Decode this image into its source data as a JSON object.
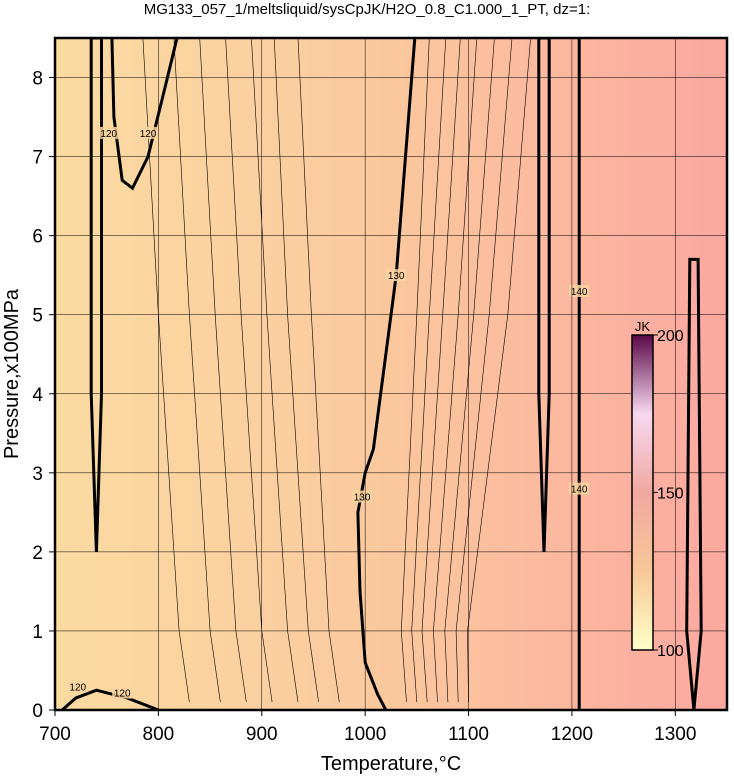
{
  "chart_data": {
    "type": "contour",
    "title": "MG133_057_1/meltsliquid/sysCpJK/H2O_0.8_C1.000_1_PT, dz=1:",
    "xlabel": "Temperature,°C",
    "ylabel": "Pressure,x100MPa",
    "xlim": [
      700,
      1350
    ],
    "ylim": [
      0,
      8.5
    ],
    "xticks": [
      700,
      800,
      900,
      1000,
      1100,
      1200,
      1300
    ],
    "yticks": [
      0,
      1,
      2,
      3,
      4,
      5,
      6,
      7,
      8
    ],
    "grid": true,
    "field_colors": [
      "#fbdba2",
      "#fbc89e",
      "#fca8a0"
    ],
    "colorbar": {
      "label": "JK",
      "lim": [
        100,
        200
      ],
      "ticks": [
        100,
        150,
        200
      ],
      "colors": [
        "#ffffc8",
        "#f8c898",
        "#f0a8a0",
        "#f8d8f0",
        "#5a0848"
      ]
    },
    "contours": [
      {
        "level": 120,
        "thick": true,
        "x": [
          707,
          720,
          740,
          770,
          800
        ],
        "y": [
          0,
          0.15,
          0.25,
          0.15,
          0
        ]
      },
      {
        "level": 120,
        "thick": true,
        "x": [
          755,
          757,
          765,
          775,
          790,
          805,
          818
        ],
        "y": [
          8.5,
          7.5,
          6.7,
          6.6,
          7.0,
          7.8,
          8.5
        ]
      },
      {
        "level": 130,
        "thick": true,
        "x": [
          1020,
          1012,
          1000,
          995,
          993,
          1000,
          1008,
          1030,
          1048
        ],
        "y": [
          0,
          0.2,
          0.6,
          1.5,
          2.5,
          3.0,
          3.3,
          5.5,
          8.5
        ]
      },
      {
        "level": 140,
        "thick": true,
        "x": [
          1207,
          1207
        ],
        "y": [
          0,
          8.5
        ]
      },
      {
        "level": 125,
        "thick": true,
        "x": [
          740,
          745,
          745,
          740,
          735,
          735,
          740
        ],
        "y": [
          2,
          4,
          8.5,
          8.5,
          8.5,
          4,
          2
        ]
      },
      {
        "level": 145,
        "thick": true,
        "x": [
          1173,
          1178,
          1178,
          1173,
          1168,
          1168,
          1173
        ],
        "y": [
          2,
          4,
          8.5,
          8.5,
          8.5,
          4,
          2
        ]
      },
      {
        "level": 150,
        "thick": true,
        "x": [
          1318,
          1325,
          1322,
          1318,
          1314,
          1311,
          1318
        ],
        "y": [
          0,
          1,
          5.7,
          5.7,
          5.7,
          1,
          0
        ]
      },
      {
        "level": 121,
        "thick": false,
        "x": [
          830,
          820,
          800,
          785
        ],
        "y": [
          0.1,
          1,
          5,
          8.5
        ]
      },
      {
        "level": 122,
        "thick": false,
        "x": [
          860,
          850,
          830,
          815
        ],
        "y": [
          0.1,
          1,
          5,
          8.5
        ]
      },
      {
        "level": 123,
        "thick": false,
        "x": [
          885,
          875,
          855,
          840
        ],
        "y": [
          0.1,
          1,
          5,
          8.5
        ]
      },
      {
        "level": 124,
        "thick": false,
        "x": [
          910,
          900,
          880,
          865
        ],
        "y": [
          0.1,
          1,
          5,
          8.5
        ]
      },
      {
        "level": 125,
        "thick": false,
        "x": [
          935,
          925,
          905,
          890
        ],
        "y": [
          0.1,
          1,
          5,
          8.5
        ]
      },
      {
        "level": 126,
        "thick": false,
        "x": [
          955,
          945,
          925,
          912
        ],
        "y": [
          0.1,
          1,
          5,
          8.5
        ]
      },
      {
        "level": 127,
        "thick": false,
        "x": [
          975,
          965,
          948,
          935
        ],
        "y": [
          0.1,
          1,
          5,
          8.5
        ]
      },
      {
        "level": 131,
        "thick": false,
        "x": [
          1040,
          1035,
          1050,
          1062
        ],
        "y": [
          0.1,
          1,
          5,
          8.5
        ]
      },
      {
        "level": 132,
        "thick": false,
        "x": [
          1050,
          1045,
          1062,
          1078
        ],
        "y": [
          0.1,
          1,
          5,
          8.5
        ]
      },
      {
        "level": 133,
        "thick": false,
        "x": [
          1060,
          1055,
          1075,
          1092
        ],
        "y": [
          0.1,
          1,
          5,
          8.5
        ]
      },
      {
        "level": 134,
        "thick": false,
        "x": [
          1070,
          1066,
          1090,
          1108
        ],
        "y": [
          0.1,
          1,
          5,
          8.5
        ]
      },
      {
        "level": 135,
        "thick": false,
        "x": [
          1080,
          1077,
          1105,
          1125
        ],
        "y": [
          0.1,
          1,
          5,
          8.5
        ]
      },
      {
        "level": 136,
        "thick": false,
        "x": [
          1090,
          1088,
          1120,
          1142
        ],
        "y": [
          0.1,
          1,
          5,
          8.5
        ]
      },
      {
        "level": 137,
        "thick": false,
        "x": [
          1100,
          1099,
          1138,
          1160
        ],
        "y": [
          0.1,
          1,
          5,
          8.5
        ]
      }
    ],
    "contour_labels": [
      {
        "level": 120,
        "x": 722,
        "y": 0.3
      },
      {
        "level": 120,
        "x": 765,
        "y": 0.22
      },
      {
        "level": 120,
        "x": 752,
        "y": 7.3
      },
      {
        "level": 120,
        "x": 790,
        "y": 7.3
      },
      {
        "level": 130,
        "x": 1030,
        "y": 5.5
      },
      {
        "level": 130,
        "x": 997,
        "y": 2.7
      },
      {
        "level": 140,
        "x": 1207,
        "y": 5.3
      },
      {
        "level": 140,
        "x": 1207,
        "y": 2.8
      }
    ]
  }
}
